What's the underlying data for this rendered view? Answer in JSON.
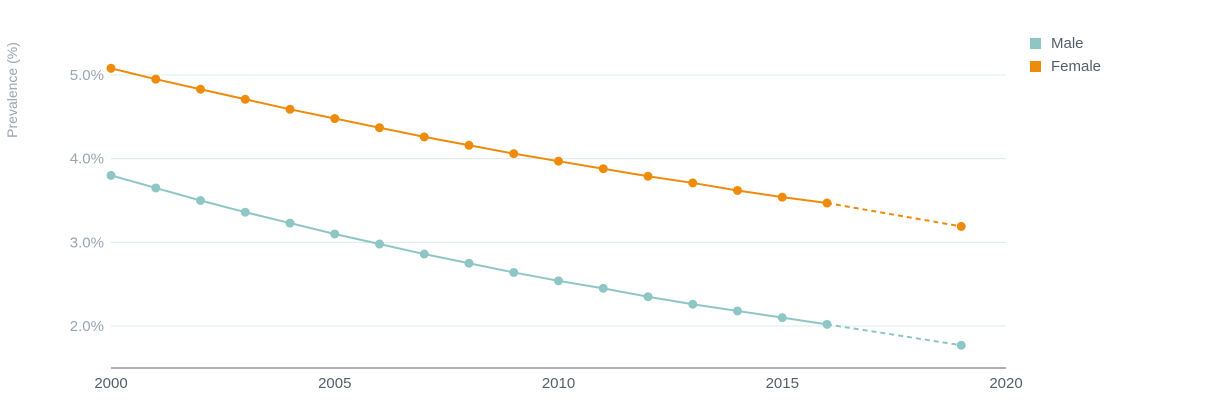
{
  "chart_data": {
    "type": "line",
    "ylabel": "Prevalence (%)",
    "xlabel": "",
    "title": "",
    "xlim": [
      2000,
      2020
    ],
    "ylim": [
      1.5,
      5.6
    ],
    "x_ticks": [
      2000,
      2005,
      2010,
      2015,
      2020
    ],
    "y_ticks": [
      2.0,
      3.0,
      4.0,
      5.0
    ],
    "y_tick_labels": [
      "2.0%",
      "3.0%",
      "4.0%",
      "5.0%"
    ],
    "grid": "horizontal",
    "legend_position": "top-right",
    "series": [
      {
        "name": "Male",
        "color": "#8ec6c5",
        "x": [
          2000,
          2001,
          2002,
          2003,
          2004,
          2005,
          2006,
          2007,
          2008,
          2009,
          2010,
          2011,
          2012,
          2013,
          2014,
          2015,
          2016,
          2019
        ],
        "y": [
          3.8,
          3.65,
          3.5,
          3.36,
          3.23,
          3.1,
          2.98,
          2.86,
          2.75,
          2.64,
          2.54,
          2.45,
          2.35,
          2.26,
          2.18,
          2.1,
          2.02,
          1.77
        ],
        "projected_from_index": 16
      },
      {
        "name": "Female",
        "color": "#ee8b0a",
        "x": [
          2000,
          2001,
          2002,
          2003,
          2004,
          2005,
          2006,
          2007,
          2008,
          2009,
          2010,
          2011,
          2012,
          2013,
          2014,
          2015,
          2016,
          2019
        ],
        "y": [
          5.08,
          4.95,
          4.83,
          4.71,
          4.59,
          4.48,
          4.37,
          4.26,
          4.16,
          4.06,
          3.97,
          3.88,
          3.79,
          3.71,
          3.62,
          3.54,
          3.47,
          3.19
        ],
        "projected_from_index": 16
      }
    ]
  },
  "legend": {
    "items": [
      {
        "label": "Male",
        "color": "#8ec6c5"
      },
      {
        "label": "Female",
        "color": "#ee8b0a"
      }
    ]
  }
}
